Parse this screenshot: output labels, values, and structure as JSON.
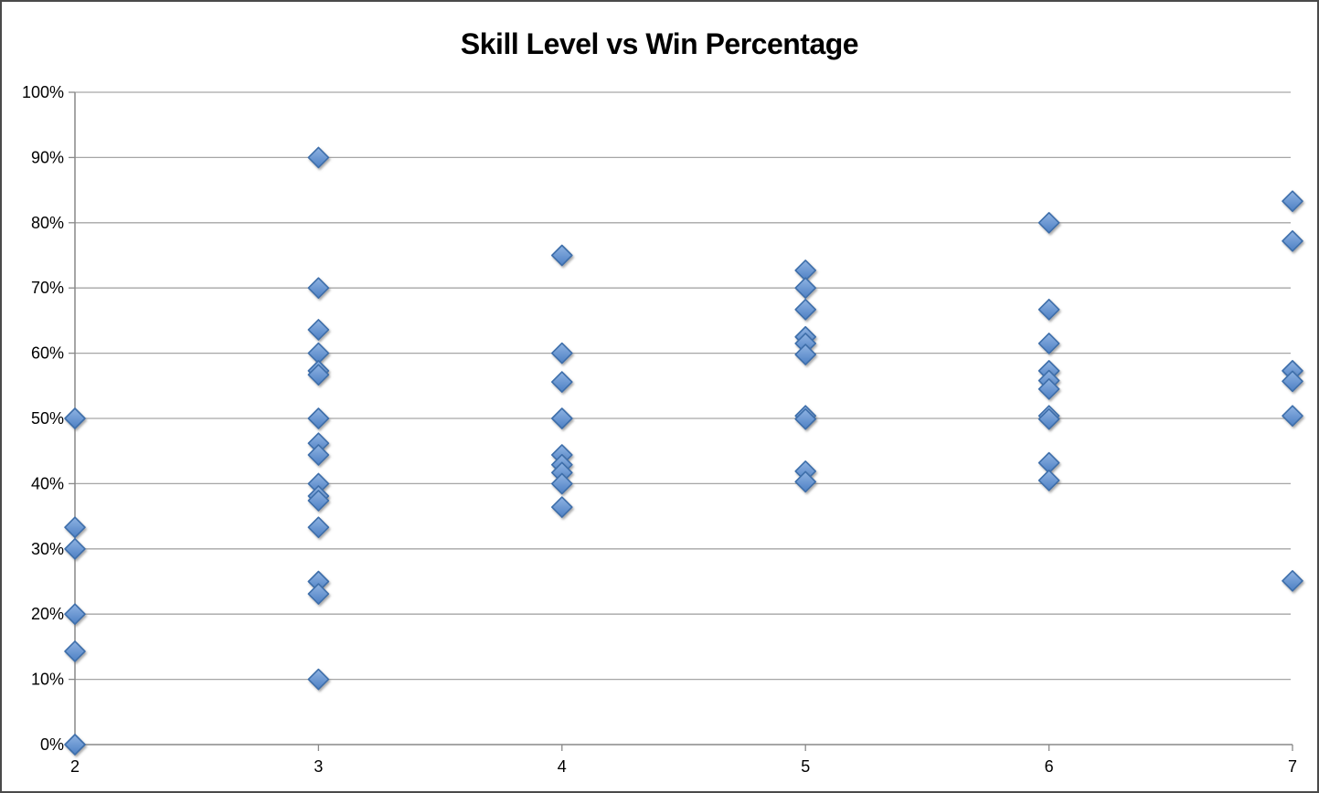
{
  "chart_data": {
    "type": "scatter",
    "title": "Skill Level vs Win Percentage",
    "xlabel": "",
    "ylabel": "",
    "xlim": [
      2,
      7
    ],
    "ylim": [
      0,
      100
    ],
    "grid": "horizontal",
    "legend": "none",
    "x_ticks": [
      {
        "v": 2,
        "label": "2"
      },
      {
        "v": 3,
        "label": "3"
      },
      {
        "v": 4,
        "label": "4"
      },
      {
        "v": 5,
        "label": "5"
      },
      {
        "v": 6,
        "label": "6"
      },
      {
        "v": 7,
        "label": "7"
      }
    ],
    "y_ticks": [
      {
        "v": 0,
        "label": "0%"
      },
      {
        "v": 10,
        "label": "10%"
      },
      {
        "v": 20,
        "label": "20%"
      },
      {
        "v": 30,
        "label": "30%"
      },
      {
        "v": 40,
        "label": "40%"
      },
      {
        "v": 50,
        "label": "50%"
      },
      {
        "v": 60,
        "label": "60%"
      },
      {
        "v": 70,
        "label": "70%"
      },
      {
        "v": 80,
        "label": "80%"
      },
      {
        "v": 90,
        "label": "90%"
      },
      {
        "v": 100,
        "label": "100%"
      }
    ],
    "marker": {
      "shape": "diamond",
      "size": 22
    },
    "series": [
      {
        "name": "Win Percentage",
        "points": [
          [
            2,
            50
          ],
          [
            2,
            33.3
          ],
          [
            2,
            30
          ],
          [
            2,
            20
          ],
          [
            2,
            14.3
          ],
          [
            2,
            0
          ],
          [
            3,
            90
          ],
          [
            3,
            70
          ],
          [
            3,
            63.6
          ],
          [
            3,
            60
          ],
          [
            3,
            57.3
          ],
          [
            3,
            56.7
          ],
          [
            3,
            50
          ],
          [
            3,
            46.2
          ],
          [
            3,
            44.4
          ],
          [
            3,
            40
          ],
          [
            3,
            38.1
          ],
          [
            3,
            37.4
          ],
          [
            3,
            33.3
          ],
          [
            3,
            25
          ],
          [
            3,
            23.1
          ],
          [
            3,
            10
          ],
          [
            4,
            75
          ],
          [
            4,
            60
          ],
          [
            4,
            55.6
          ],
          [
            4,
            50
          ],
          [
            4,
            44.4
          ],
          [
            4,
            42.9
          ],
          [
            4,
            41.7
          ],
          [
            4,
            40
          ],
          [
            4,
            36.4
          ],
          [
            5,
            72.7
          ],
          [
            5,
            70
          ],
          [
            5,
            66.7
          ],
          [
            5,
            62.5
          ],
          [
            5,
            61.5
          ],
          [
            5,
            59.8
          ],
          [
            5,
            50.4
          ],
          [
            5,
            49.9
          ],
          [
            5,
            41.9
          ],
          [
            5,
            40.3
          ],
          [
            6,
            80
          ],
          [
            6,
            66.7
          ],
          [
            6,
            61.5
          ],
          [
            6,
            57.3
          ],
          [
            6,
            55.8
          ],
          [
            6,
            54.5
          ],
          [
            6,
            50.4
          ],
          [
            6,
            49.9
          ],
          [
            6,
            43.2
          ],
          [
            6,
            40.5
          ],
          [
            7,
            83.3
          ],
          [
            7,
            77.2
          ],
          [
            7,
            57.3
          ],
          [
            7,
            55.7
          ],
          [
            7,
            50.4
          ],
          [
            7,
            25.1
          ]
        ]
      }
    ]
  },
  "colors": {
    "background": "#FFFFFF",
    "outer_border": "#4A4A4A",
    "gridline": "#A6A6A6",
    "axis": "#898989",
    "tick": "#898989",
    "text": "#000000",
    "marker_fill_top": "#8FB3E2",
    "marker_fill_bottom": "#4D80C4",
    "marker_border": "#3D6EAA",
    "marker_shadow": "#6E6E6E"
  }
}
